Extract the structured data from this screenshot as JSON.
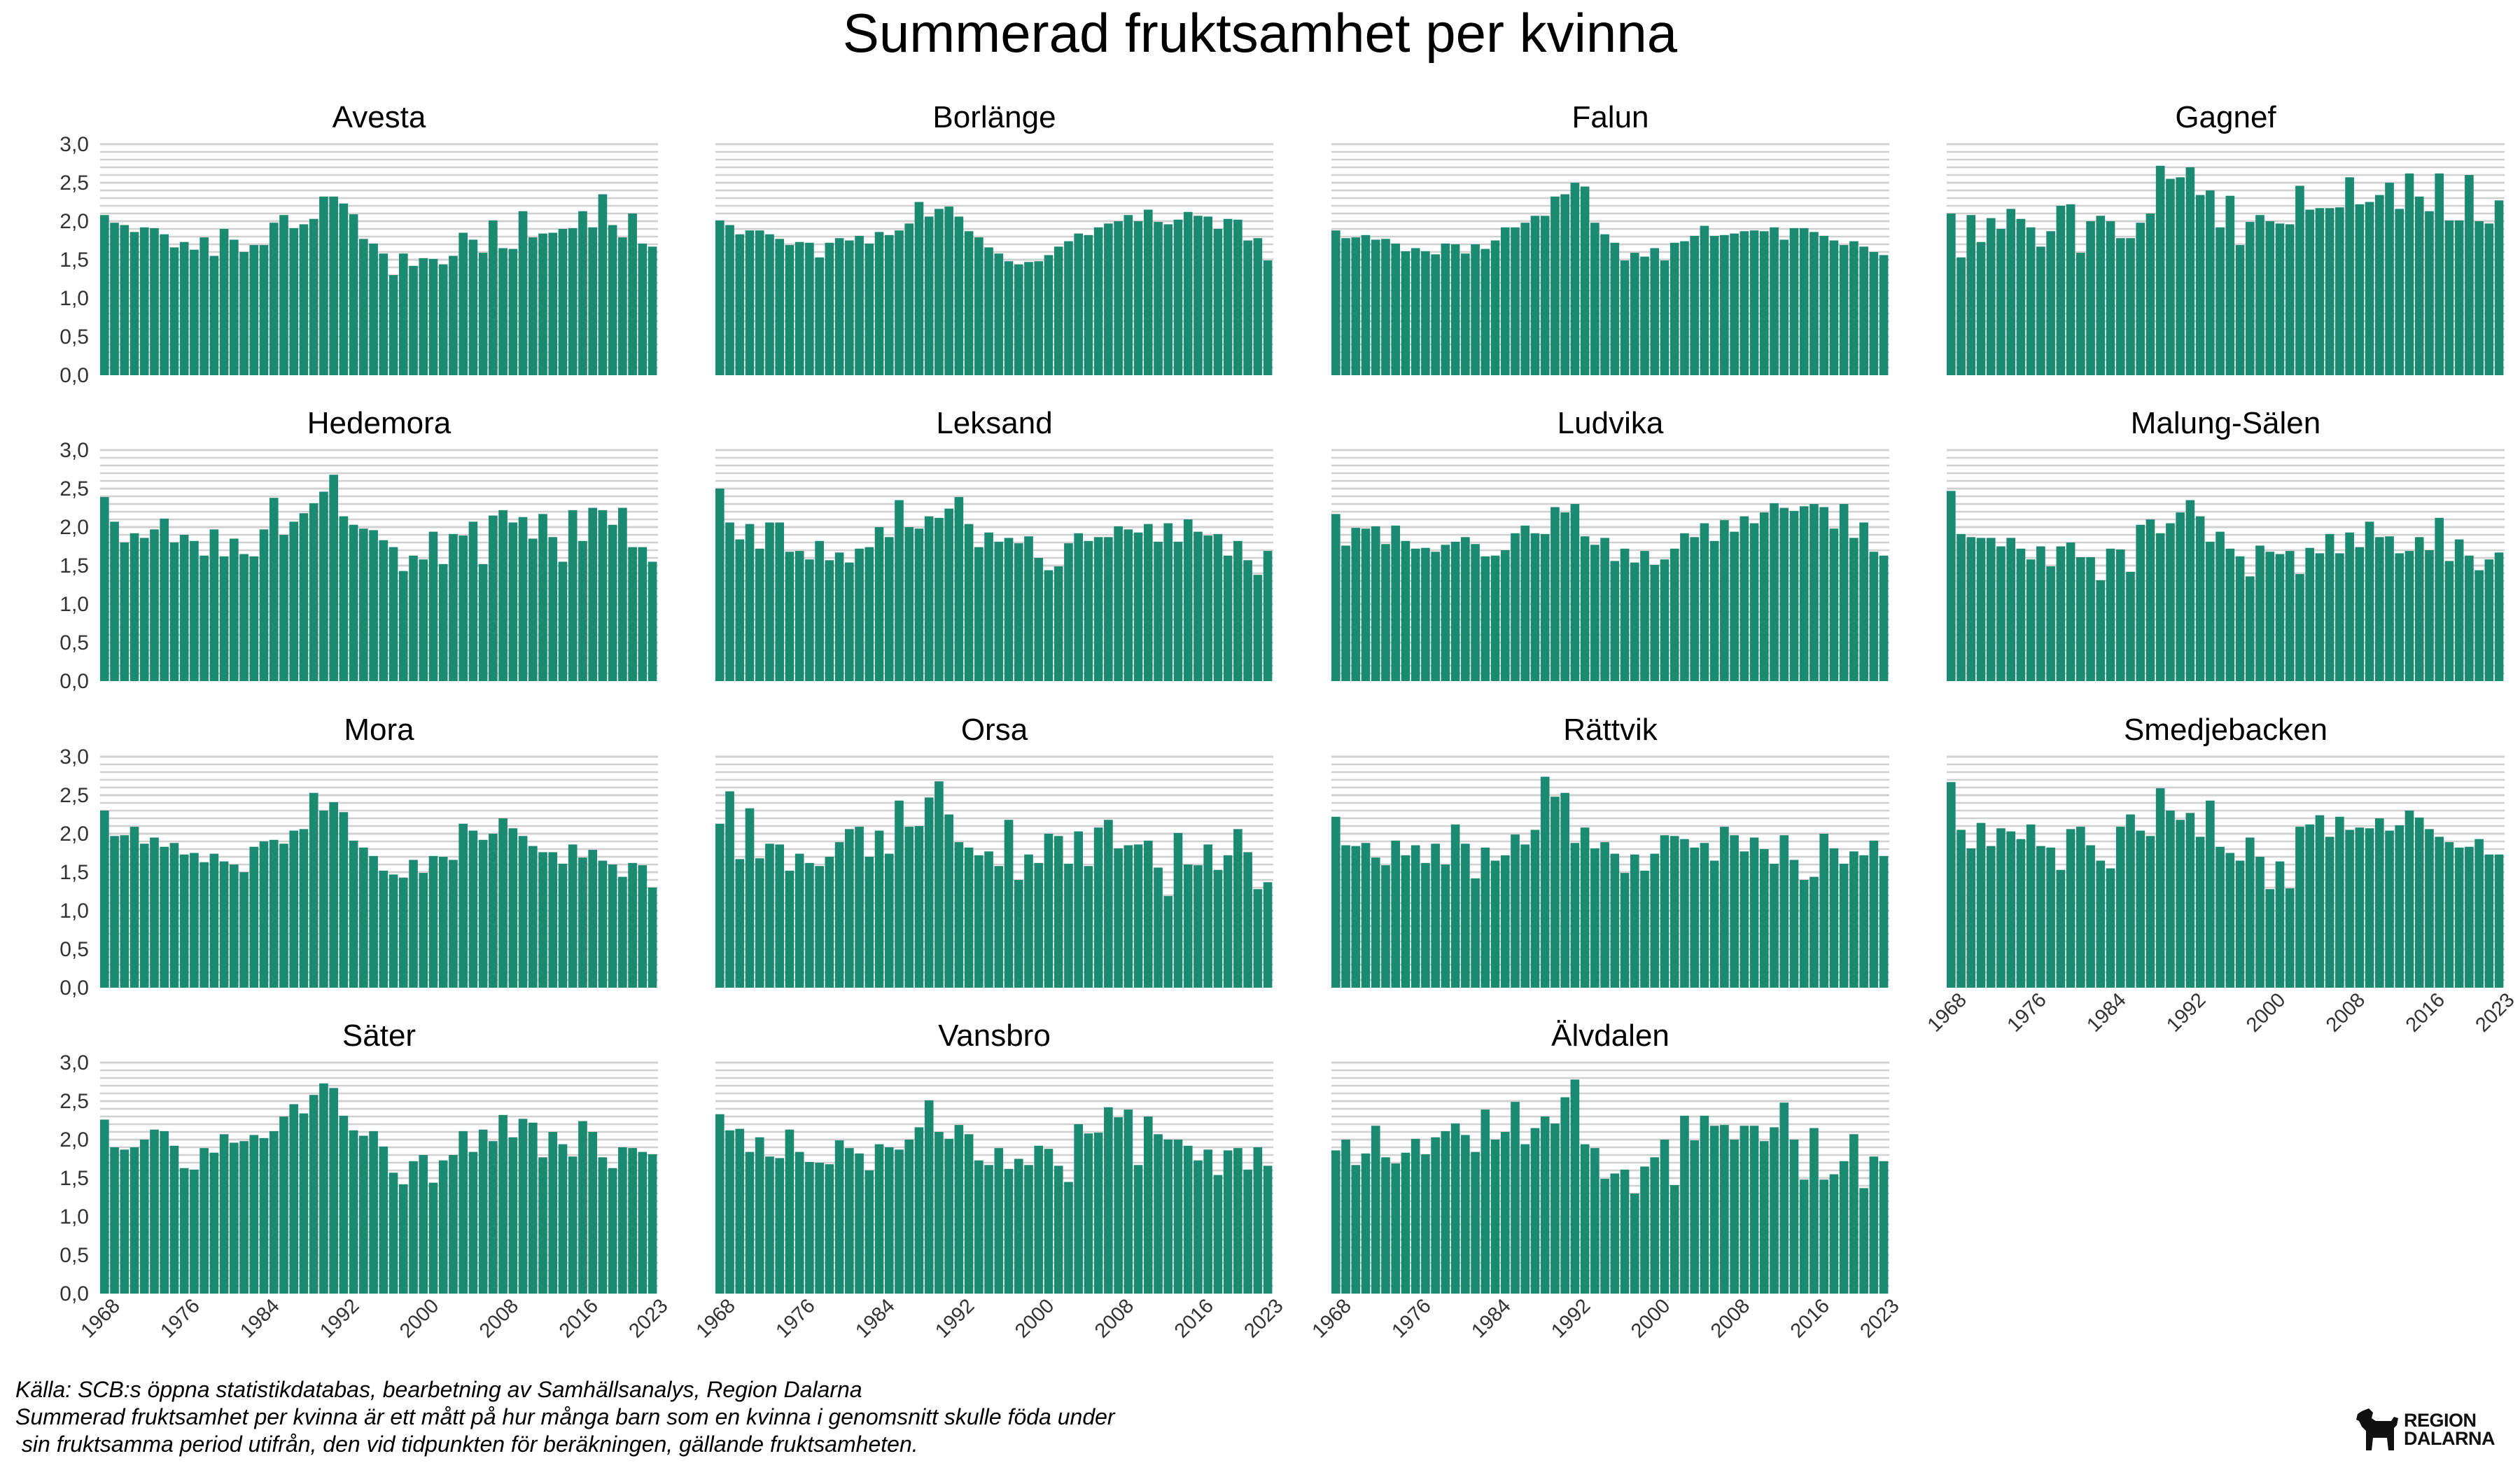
{
  "title": "Summerad fruktsamhet per kvinna",
  "footer": {
    "source": "Källa: SCB:s öppna statistikdatabas, bearbetning av Samhällsanalys, Region Dalarna",
    "note_line1": "Summerad fruktsamhet per kvinna är ett mått på hur många barn som en kvinna i genomsnitt skulle föda under",
    "note_line2": " sin fruktsamma period utifrån, den vid tidpunkten för beräkningen, gällande fruktsamheten."
  },
  "logo": {
    "line1": "REGION",
    "line2": "DALARNA",
    "icon": "dala-horse-icon"
  },
  "colors": {
    "bar": "#1a8a70",
    "grid": "#d0d0d0"
  },
  "chart_data": {
    "type": "bar",
    "layout": "small-multiples",
    "years": [
      1968,
      1969,
      1970,
      1971,
      1972,
      1973,
      1974,
      1975,
      1976,
      1977,
      1978,
      1979,
      1980,
      1981,
      1982,
      1983,
      1984,
      1985,
      1986,
      1987,
      1988,
      1989,
      1990,
      1991,
      1992,
      1993,
      1994,
      1995,
      1996,
      1997,
      1998,
      1999,
      2000,
      2001,
      2002,
      2003,
      2004,
      2005,
      2006,
      2007,
      2008,
      2009,
      2010,
      2011,
      2012,
      2013,
      2014,
      2015,
      2016,
      2017,
      2018,
      2019,
      2020,
      2021,
      2022,
      2023
    ],
    "xticks": [
      "1968",
      "1976",
      "1984",
      "1992",
      "2000",
      "2008",
      "2016",
      "2023"
    ],
    "yticks": [
      "0,0",
      "0,5",
      "1,0",
      "1,5",
      "2,0",
      "2,5",
      "3,0"
    ],
    "ylim": [
      0,
      3.0
    ],
    "grid": true,
    "panels": [
      {
        "name": "Avesta",
        "values": [
          2.08,
          1.98,
          1.95,
          1.86,
          1.92,
          1.91,
          1.83,
          1.66,
          1.73,
          1.63,
          1.79,
          1.55,
          1.9,
          1.76,
          1.6,
          1.69,
          1.69,
          1.98,
          2.08,
          1.91,
          1.96,
          2.03,
          2.32,
          2.32,
          2.23,
          2.09,
          1.77,
          1.71,
          1.58,
          1.3,
          1.58,
          1.42,
          1.52,
          1.51,
          1.44,
          1.55,
          1.85,
          1.76,
          1.59,
          2.01,
          1.65,
          1.64,
          2.13,
          1.79,
          1.84,
          1.85,
          1.9,
          1.91,
          2.13,
          1.92,
          2.35,
          1.95,
          1.79,
          2.1,
          1.71,
          1.67
        ]
      },
      {
        "name": "Borlänge",
        "values": [
          2.01,
          1.95,
          1.83,
          1.88,
          1.88,
          1.83,
          1.77,
          1.69,
          1.73,
          1.72,
          1.53,
          1.72,
          1.78,
          1.75,
          1.81,
          1.71,
          1.86,
          1.82,
          1.88,
          1.97,
          2.25,
          2.06,
          2.16,
          2.19,
          2.06,
          1.87,
          1.79,
          1.66,
          1.58,
          1.48,
          1.44,
          1.47,
          1.48,
          1.56,
          1.67,
          1.74,
          1.84,
          1.82,
          1.92,
          1.97,
          2.0,
          2.08,
          2.0,
          2.15,
          1.99,
          1.96,
          2.02,
          2.12,
          2.07,
          2.06,
          1.9,
          2.03,
          2.02,
          1.75,
          1.78,
          1.49
        ]
      },
      {
        "name": "Falun",
        "values": [
          1.88,
          1.78,
          1.79,
          1.82,
          1.76,
          1.77,
          1.71,
          1.61,
          1.65,
          1.61,
          1.57,
          1.71,
          1.7,
          1.58,
          1.7,
          1.64,
          1.75,
          1.92,
          1.92,
          1.98,
          2.07,
          2.07,
          2.32,
          2.35,
          2.5,
          2.45,
          1.98,
          1.83,
          1.72,
          1.49,
          1.59,
          1.54,
          1.65,
          1.49,
          1.72,
          1.74,
          1.81,
          1.94,
          1.81,
          1.82,
          1.84,
          1.87,
          1.88,
          1.87,
          1.92,
          1.76,
          1.91,
          1.91,
          1.86,
          1.81,
          1.75,
          1.69,
          1.74,
          1.67,
          1.6,
          1.56
        ]
      },
      {
        "name": "Gagnef",
        "values": [
          2.1,
          1.53,
          2.08,
          1.73,
          2.04,
          1.9,
          2.16,
          2.03,
          1.92,
          1.67,
          1.87,
          2.2,
          2.22,
          1.59,
          2.0,
          2.07,
          2.0,
          1.78,
          1.78,
          1.98,
          2.1,
          2.72,
          2.55,
          2.57,
          2.7,
          2.34,
          2.4,
          1.92,
          2.33,
          1.69,
          1.99,
          2.08,
          2.0,
          1.97,
          1.96,
          2.46,
          2.15,
          2.17,
          2.17,
          2.18,
          2.57,
          2.22,
          2.25,
          2.34,
          2.5,
          2.16,
          2.62,
          2.32,
          2.13,
          2.62,
          2.01,
          2.01,
          2.6,
          2.0,
          1.97,
          2.27
        ]
      },
      {
        "name": "Hedemora",
        "values": [
          2.39,
          2.07,
          1.8,
          1.92,
          1.86,
          1.97,
          2.11,
          1.8,
          1.9,
          1.82,
          1.63,
          1.97,
          1.62,
          1.85,
          1.65,
          1.62,
          1.97,
          2.38,
          1.9,
          2.07,
          2.18,
          2.31,
          2.46,
          2.68,
          2.14,
          2.03,
          1.98,
          1.96,
          1.83,
          1.74,
          1.43,
          1.63,
          1.58,
          1.94,
          1.52,
          1.91,
          1.89,
          2.07,
          1.52,
          2.15,
          2.22,
          2.06,
          2.13,
          1.85,
          2.17,
          1.87,
          1.55,
          2.22,
          1.82,
          2.25,
          2.22,
          2.03,
          2.25,
          1.74,
          1.74,
          1.55
        ]
      },
      {
        "name": "Leksand",
        "values": [
          2.5,
          2.06,
          1.84,
          2.04,
          1.72,
          2.06,
          2.06,
          1.68,
          1.69,
          1.58,
          1.82,
          1.57,
          1.67,
          1.54,
          1.72,
          1.74,
          2.0,
          1.87,
          2.35,
          2.0,
          1.98,
          2.14,
          2.12,
          2.24,
          2.39,
          2.04,
          1.74,
          1.93,
          1.81,
          1.86,
          1.79,
          1.88,
          1.6,
          1.44,
          1.49,
          1.79,
          1.92,
          1.82,
          1.87,
          1.87,
          2.01,
          1.97,
          1.93,
          2.04,
          1.81,
          2.05,
          1.81,
          2.1,
          1.94,
          1.89,
          1.91,
          1.63,
          1.82,
          1.57,
          1.38,
          1.69
        ]
      },
      {
        "name": "Ludvika",
        "values": [
          2.17,
          1.76,
          1.99,
          1.98,
          2.01,
          1.78,
          2.02,
          1.82,
          1.72,
          1.73,
          1.68,
          1.77,
          1.81,
          1.87,
          1.78,
          1.62,
          1.63,
          1.7,
          1.92,
          2.02,
          1.92,
          1.91,
          2.26,
          2.19,
          2.3,
          1.88,
          1.77,
          1.86,
          1.56,
          1.72,
          1.54,
          1.69,
          1.51,
          1.58,
          1.72,
          1.92,
          1.87,
          2.05,
          1.82,
          2.09,
          1.94,
          2.14,
          2.05,
          2.19,
          2.31,
          2.25,
          2.21,
          2.27,
          2.3,
          2.26,
          1.98,
          2.3,
          1.86,
          2.06,
          1.68,
          1.63
        ]
      },
      {
        "name": "Malung-Sälen",
        "values": [
          2.47,
          1.91,
          1.87,
          1.86,
          1.86,
          1.75,
          1.86,
          1.72,
          1.58,
          1.75,
          1.49,
          1.75,
          1.8,
          1.61,
          1.61,
          1.31,
          1.72,
          1.71,
          1.42,
          2.03,
          2.1,
          1.92,
          2.05,
          2.19,
          2.35,
          2.14,
          1.81,
          1.94,
          1.72,
          1.62,
          1.36,
          1.76,
          1.68,
          1.65,
          1.69,
          1.39,
          1.73,
          1.66,
          1.91,
          1.66,
          1.93,
          1.74,
          2.07,
          1.87,
          1.88,
          1.66,
          1.69,
          1.87,
          1.7,
          2.12,
          1.56,
          1.84,
          1.63,
          1.44,
          1.58,
          1.67
        ]
      },
      {
        "name": "Mora",
        "values": [
          2.3,
          1.97,
          1.98,
          2.09,
          1.87,
          1.95,
          1.83,
          1.88,
          1.73,
          1.75,
          1.63,
          1.74,
          1.64,
          1.6,
          1.5,
          1.83,
          1.9,
          1.92,
          1.87,
          2.04,
          2.06,
          2.53,
          2.3,
          2.41,
          2.28,
          1.91,
          1.82,
          1.71,
          1.52,
          1.47,
          1.43,
          1.66,
          1.49,
          1.71,
          1.7,
          1.66,
          2.13,
          2.04,
          1.92,
          2.0,
          2.2,
          2.07,
          1.97,
          1.84,
          1.76,
          1.76,
          1.61,
          1.86,
          1.69,
          1.79,
          1.65,
          1.6,
          1.44,
          1.62,
          1.59,
          1.3
        ]
      },
      {
        "name": "Orsa",
        "values": [
          2.13,
          2.55,
          1.67,
          2.33,
          1.68,
          1.87,
          1.86,
          1.52,
          1.74,
          1.62,
          1.58,
          1.7,
          1.89,
          2.06,
          2.09,
          1.7,
          2.04,
          1.74,
          2.43,
          2.09,
          2.1,
          2.47,
          2.68,
          2.25,
          1.89,
          1.82,
          1.72,
          1.77,
          1.58,
          2.18,
          1.4,
          1.73,
          1.62,
          2.0,
          1.97,
          1.61,
          2.03,
          1.58,
          2.08,
          2.18,
          1.81,
          1.85,
          1.86,
          1.91,
          1.56,
          1.19,
          2.01,
          1.6,
          1.59,
          1.86,
          1.53,
          1.72,
          2.06,
          1.76,
          1.28,
          1.37
        ]
      },
      {
        "name": "Rättvik",
        "values": [
          2.22,
          1.85,
          1.84,
          1.88,
          1.69,
          1.59,
          1.91,
          1.72,
          1.85,
          1.62,
          1.87,
          1.6,
          2.12,
          1.87,
          1.42,
          1.82,
          1.65,
          1.72,
          1.99,
          1.86,
          2.05,
          2.74,
          2.48,
          2.53,
          1.88,
          2.08,
          1.81,
          1.89,
          1.74,
          1.49,
          1.73,
          1.52,
          1.74,
          1.98,
          1.97,
          1.93,
          1.82,
          1.88,
          1.65,
          2.09,
          1.98,
          1.77,
          1.95,
          1.8,
          1.61,
          1.98,
          1.66,
          1.4,
          1.44,
          2.0,
          1.81,
          1.61,
          1.77,
          1.72,
          1.91,
          1.71
        ]
      },
      {
        "name": "Smedjebacken",
        "values": [
          2.67,
          2.05,
          1.81,
          2.14,
          1.84,
          2.07,
          2.03,
          1.93,
          2.12,
          1.84,
          1.82,
          1.53,
          2.06,
          2.09,
          1.85,
          1.65,
          1.55,
          2.09,
          2.25,
          2.04,
          1.97,
          2.59,
          2.3,
          2.18,
          2.27,
          1.96,
          2.43,
          1.83,
          1.75,
          1.65,
          1.95,
          1.7,
          1.28,
          1.64,
          1.29,
          2.09,
          2.12,
          2.24,
          1.96,
          2.22,
          2.05,
          2.08,
          2.07,
          2.2,
          2.04,
          2.11,
          2.3,
          2.21,
          2.06,
          1.96,
          1.89,
          1.82,
          1.83,
          1.93,
          1.73,
          1.73
        ]
      },
      {
        "name": "Säter",
        "values": [
          2.26,
          1.9,
          1.87,
          1.9,
          2.0,
          2.13,
          2.11,
          1.92,
          1.63,
          1.61,
          1.89,
          1.83,
          2.07,
          1.96,
          1.98,
          2.06,
          2.02,
          2.11,
          2.3,
          2.46,
          2.34,
          2.58,
          2.73,
          2.67,
          2.31,
          2.12,
          2.05,
          2.11,
          1.91,
          1.57,
          1.42,
          1.72,
          1.8,
          1.44,
          1.73,
          1.8,
          2.11,
          1.84,
          2.13,
          1.98,
          2.32,
          2.03,
          2.27,
          2.22,
          1.77,
          2.1,
          1.94,
          1.78,
          2.24,
          2.1,
          1.77,
          1.63,
          1.9,
          1.89,
          1.84,
          1.81
        ]
      },
      {
        "name": "Vansbro",
        "values": [
          2.33,
          2.12,
          2.14,
          1.84,
          2.03,
          1.78,
          1.76,
          2.13,
          1.84,
          1.71,
          1.7,
          1.68,
          1.99,
          1.89,
          1.82,
          1.6,
          1.94,
          1.9,
          1.87,
          2.0,
          2.16,
          2.51,
          2.1,
          2.01,
          2.19,
          2.07,
          1.73,
          1.67,
          1.89,
          1.62,
          1.75,
          1.67,
          1.92,
          1.88,
          1.66,
          1.45,
          2.2,
          2.08,
          2.09,
          2.42,
          2.29,
          2.39,
          1.67,
          2.3,
          2.07,
          2.0,
          2.0,
          1.92,
          1.73,
          1.87,
          1.54,
          1.86,
          1.89,
          1.61,
          1.9,
          1.66
        ]
      },
      {
        "name": "Älvdalen",
        "values": [
          1.86,
          2.0,
          1.67,
          1.82,
          2.18,
          1.77,
          1.69,
          1.83,
          2.01,
          1.81,
          2.03,
          2.11,
          2.21,
          2.06,
          1.84,
          2.39,
          2.0,
          2.1,
          2.49,
          1.94,
          2.15,
          2.3,
          2.21,
          2.55,
          2.78,
          1.94,
          1.89,
          1.49,
          1.56,
          1.61,
          1.3,
          1.65,
          1.77,
          2.0,
          1.41,
          2.31,
          1.99,
          2.31,
          2.18,
          2.19,
          2.0,
          2.18,
          2.18,
          1.98,
          2.16,
          2.48,
          2.0,
          1.48,
          2.15,
          1.48,
          1.55,
          1.72,
          2.07,
          1.37,
          1.78,
          1.72
        ]
      }
    ]
  }
}
